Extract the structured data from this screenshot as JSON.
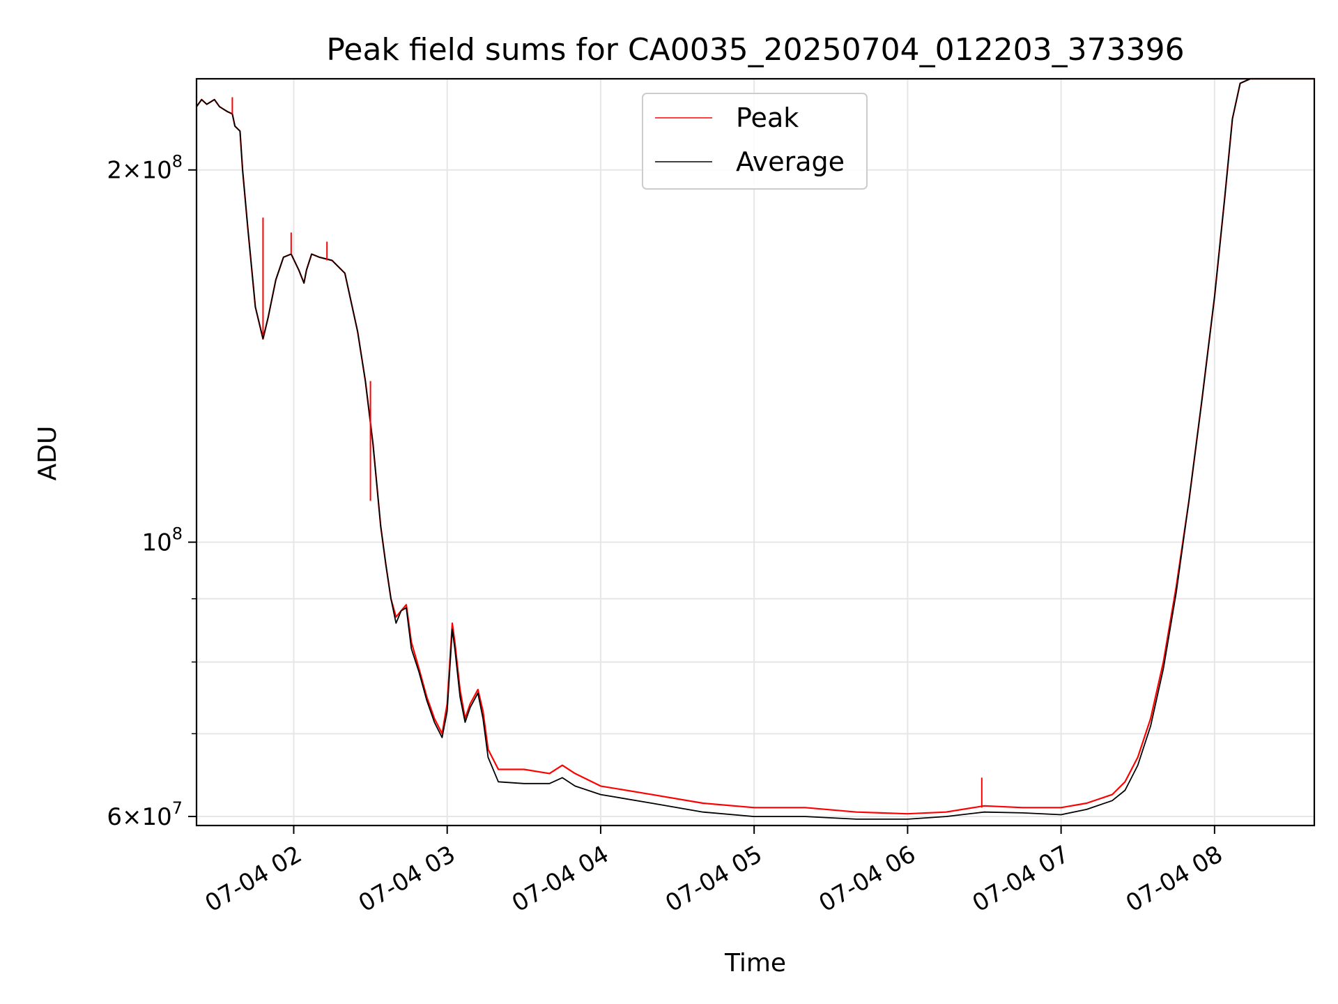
{
  "chart_data": {
    "type": "line",
    "title": "Peak field sums for CA0035_20250704_012203_373396",
    "xlabel": "Time",
    "ylabel": "ADU",
    "x_range": [
      "07-04 01:22",
      "07-04 08:39"
    ],
    "y_range": [
      59000000,
      237000000
    ],
    "y_scale": "log",
    "grid": true,
    "legend_position": "upper-center",
    "x_ticks": [
      {
        "time": "07-04 02:00",
        "label": "07-04 02"
      },
      {
        "time": "07-04 03:00",
        "label": "07-04 03"
      },
      {
        "time": "07-04 04:00",
        "label": "07-04 04"
      },
      {
        "time": "07-04 05:00",
        "label": "07-04 05"
      },
      {
        "time": "07-04 06:00",
        "label": "07-04 06"
      },
      {
        "time": "07-04 07:00",
        "label": "07-04 07"
      },
      {
        "time": "07-04 08:00",
        "label": "07-04 08"
      }
    ],
    "y_ticks": [
      {
        "value": 60000000,
        "mantissa": "6",
        "exponent": "7"
      },
      {
        "value": 100000000,
        "mantissa": "",
        "exponent": "8"
      },
      {
        "value": 200000000,
        "mantissa": "2",
        "exponent": "8"
      }
    ],
    "y_minor_ticks": [
      70000000,
      80000000,
      90000000
    ],
    "series": [
      {
        "name": "Peak",
        "color": "#ff0000",
        "points": [
          [
            "07-04 01:22",
            225000000
          ],
          [
            "07-04 01:24",
            228000000
          ],
          [
            "07-04 01:26",
            226000000
          ],
          [
            "07-04 01:29",
            228000000
          ],
          [
            "07-04 01:31",
            225000000
          ],
          [
            "07-04 01:34",
            223000000
          ],
          [
            "07-04 01:36",
            222000000
          ],
          [
            "07-04 01:37",
            217000000
          ],
          [
            "07-04 01:39",
            215000000
          ],
          [
            "07-04 01:40",
            200000000
          ],
          [
            "07-04 01:42",
            180000000
          ],
          [
            "07-04 01:45",
            155000000
          ],
          [
            "07-04 01:48",
            146000000
          ],
          [
            "07-04 01:50",
            152000000
          ],
          [
            "07-04 01:53",
            163000000
          ],
          [
            "07-04 01:56",
            170000000
          ],
          [
            "07-04 01:59",
            171000000
          ],
          [
            "07-04 02:02",
            166000000
          ],
          [
            "07-04 02:04",
            162000000
          ],
          [
            "07-04 02:05",
            166000000
          ],
          [
            "07-04 02:07",
            171000000
          ],
          [
            "07-04 02:10",
            170000000
          ],
          [
            "07-04 02:15",
            169000000
          ],
          [
            "07-04 02:20",
            165000000
          ],
          [
            "07-04 02:25",
            148000000
          ],
          [
            "07-04 02:28",
            135000000
          ],
          [
            "07-04 02:31",
            120000000
          ],
          [
            "07-04 02:34",
            103000000
          ],
          [
            "07-04 02:36",
            96000000
          ],
          [
            "07-04 02:38",
            90000000
          ],
          [
            "07-04 02:40",
            87000000
          ],
          [
            "07-04 02:42",
            88000000
          ],
          [
            "07-04 02:44",
            89000000
          ],
          [
            "07-04 02:46",
            83000000
          ],
          [
            "07-04 02:49",
            79000000
          ],
          [
            "07-04 02:52",
            75000000
          ],
          [
            "07-04 02:55",
            72000000
          ],
          [
            "07-04 02:58",
            70000000
          ],
          [
            "07-04 03:00",
            74000000
          ],
          [
            "07-04 03:02",
            86000000
          ],
          [
            "07-04 03:03",
            83000000
          ],
          [
            "07-04 03:05",
            76000000
          ],
          [
            "07-04 03:07",
            72000000
          ],
          [
            "07-04 03:09",
            74000000
          ],
          [
            "07-04 03:12",
            76000000
          ],
          [
            "07-04 03:14",
            73000000
          ],
          [
            "07-04 03:16",
            68000000
          ],
          [
            "07-04 03:20",
            65500000
          ],
          [
            "07-04 03:30",
            65500000
          ],
          [
            "07-04 03:40",
            65000000
          ],
          [
            "07-04 03:45",
            66000000
          ],
          [
            "07-04 03:50",
            65000000
          ],
          [
            "07-04 04:00",
            63500000
          ],
          [
            "07-04 04:20",
            62500000
          ],
          [
            "07-04 04:40",
            61500000
          ],
          [
            "07-04 05:00",
            61000000
          ],
          [
            "07-04 05:20",
            61000000
          ],
          [
            "07-04 05:40",
            60500000
          ],
          [
            "07-04 06:00",
            60300000
          ],
          [
            "07-04 06:15",
            60500000
          ],
          [
            "07-04 06:30",
            61200000
          ],
          [
            "07-04 06:45",
            61000000
          ],
          [
            "07-04 07:00",
            61000000
          ],
          [
            "07-04 07:10",
            61500000
          ],
          [
            "07-04 07:20",
            62500000
          ],
          [
            "07-04 07:25",
            64000000
          ],
          [
            "07-04 07:30",
            67000000
          ],
          [
            "07-04 07:35",
            72000000
          ],
          [
            "07-04 07:40",
            80000000
          ],
          [
            "07-04 07:45",
            92000000
          ],
          [
            "07-04 07:50",
            108000000
          ],
          [
            "07-04 07:55",
            130000000
          ],
          [
            "07-04 08:00",
            158000000
          ],
          [
            "07-04 08:04",
            190000000
          ],
          [
            "07-04 08:07",
            220000000
          ],
          [
            "07-04 08:10",
            235000000
          ],
          [
            "07-04 08:14",
            237000000
          ],
          [
            "07-04 08:39",
            237000000
          ]
        ]
      },
      {
        "name": "Average",
        "color": "#000000",
        "points": [
          [
            "07-04 01:22",
            225000000
          ],
          [
            "07-04 01:24",
            228000000
          ],
          [
            "07-04 01:26",
            226000000
          ],
          [
            "07-04 01:29",
            228000000
          ],
          [
            "07-04 01:31",
            225000000
          ],
          [
            "07-04 01:34",
            223000000
          ],
          [
            "07-04 01:36",
            222000000
          ],
          [
            "07-04 01:37",
            217000000
          ],
          [
            "07-04 01:39",
            215000000
          ],
          [
            "07-04 01:40",
            200000000
          ],
          [
            "07-04 01:42",
            180000000
          ],
          [
            "07-04 01:45",
            155000000
          ],
          [
            "07-04 01:48",
            146000000
          ],
          [
            "07-04 01:50",
            152000000
          ],
          [
            "07-04 01:53",
            163000000
          ],
          [
            "07-04 01:56",
            170000000
          ],
          [
            "07-04 01:59",
            171000000
          ],
          [
            "07-04 02:02",
            166000000
          ],
          [
            "07-04 02:04",
            162000000
          ],
          [
            "07-04 02:05",
            166000000
          ],
          [
            "07-04 02:07",
            171000000
          ],
          [
            "07-04 02:10",
            170000000
          ],
          [
            "07-04 02:15",
            169000000
          ],
          [
            "07-04 02:20",
            165000000
          ],
          [
            "07-04 02:25",
            148000000
          ],
          [
            "07-04 02:28",
            135000000
          ],
          [
            "07-04 02:31",
            120000000
          ],
          [
            "07-04 02:34",
            103000000
          ],
          [
            "07-04 02:36",
            96000000
          ],
          [
            "07-04 02:38",
            90000000
          ],
          [
            "07-04 02:40",
            86000000
          ],
          [
            "07-04 02:42",
            88000000
          ],
          [
            "07-04 02:44",
            88500000
          ],
          [
            "07-04 02:46",
            82000000
          ],
          [
            "07-04 02:49",
            78500000
          ],
          [
            "07-04 02:52",
            74500000
          ],
          [
            "07-04 02:55",
            71500000
          ],
          [
            "07-04 02:58",
            69500000
          ],
          [
            "07-04 03:00",
            73000000
          ],
          [
            "07-04 03:02",
            85000000
          ],
          [
            "07-04 03:03",
            82000000
          ],
          [
            "07-04 03:05",
            75000000
          ],
          [
            "07-04 03:07",
            71500000
          ],
          [
            "07-04 03:09",
            73500000
          ],
          [
            "07-04 03:12",
            75500000
          ],
          [
            "07-04 03:14",
            72000000
          ],
          [
            "07-04 03:16",
            67000000
          ],
          [
            "07-04 03:20",
            64000000
          ],
          [
            "07-04 03:30",
            63800000
          ],
          [
            "07-04 03:40",
            63800000
          ],
          [
            "07-04 03:45",
            64500000
          ],
          [
            "07-04 03:50",
            63500000
          ],
          [
            "07-04 04:00",
            62500000
          ],
          [
            "07-04 04:20",
            61500000
          ],
          [
            "07-04 04:40",
            60500000
          ],
          [
            "07-04 05:00",
            60000000
          ],
          [
            "07-04 05:20",
            60000000
          ],
          [
            "07-04 05:40",
            59700000
          ],
          [
            "07-04 06:00",
            59700000
          ],
          [
            "07-04 06:15",
            60000000
          ],
          [
            "07-04 06:30",
            60500000
          ],
          [
            "07-04 06:45",
            60400000
          ],
          [
            "07-04 07:00",
            60200000
          ],
          [
            "07-04 07:10",
            60800000
          ],
          [
            "07-04 07:20",
            61800000
          ],
          [
            "07-04 07:25",
            63000000
          ],
          [
            "07-04 07:30",
            66000000
          ],
          [
            "07-04 07:35",
            71000000
          ],
          [
            "07-04 07:40",
            79000000
          ],
          [
            "07-04 07:45",
            91000000
          ],
          [
            "07-04 07:50",
            108000000
          ],
          [
            "07-04 07:55",
            130000000
          ],
          [
            "07-04 08:00",
            158000000
          ],
          [
            "07-04 08:04",
            190000000
          ],
          [
            "07-04 08:07",
            220000000
          ],
          [
            "07-04 08:10",
            235000000
          ],
          [
            "07-04 08:14",
            237000000
          ],
          [
            "07-04 08:39",
            237000000
          ]
        ]
      }
    ],
    "spikes": [
      {
        "series": "Peak",
        "time": "07-04 01:36",
        "from": 222000000,
        "to": 229000000
      },
      {
        "series": "Peak",
        "time": "07-04 01:48",
        "from": 147000000,
        "to": 183000000
      },
      {
        "series": "Peak",
        "time": "07-04 01:59",
        "from": 171000000,
        "to": 178000000
      },
      {
        "series": "Peak",
        "time": "07-04 02:13",
        "from": 169000000,
        "to": 175000000
      },
      {
        "series": "Peak",
        "time": "07-04 02:30",
        "from": 108000000,
        "to": 135000000
      },
      {
        "series": "Peak",
        "time": "07-04 06:29",
        "from": 61000000,
        "to": 64500000
      }
    ]
  }
}
